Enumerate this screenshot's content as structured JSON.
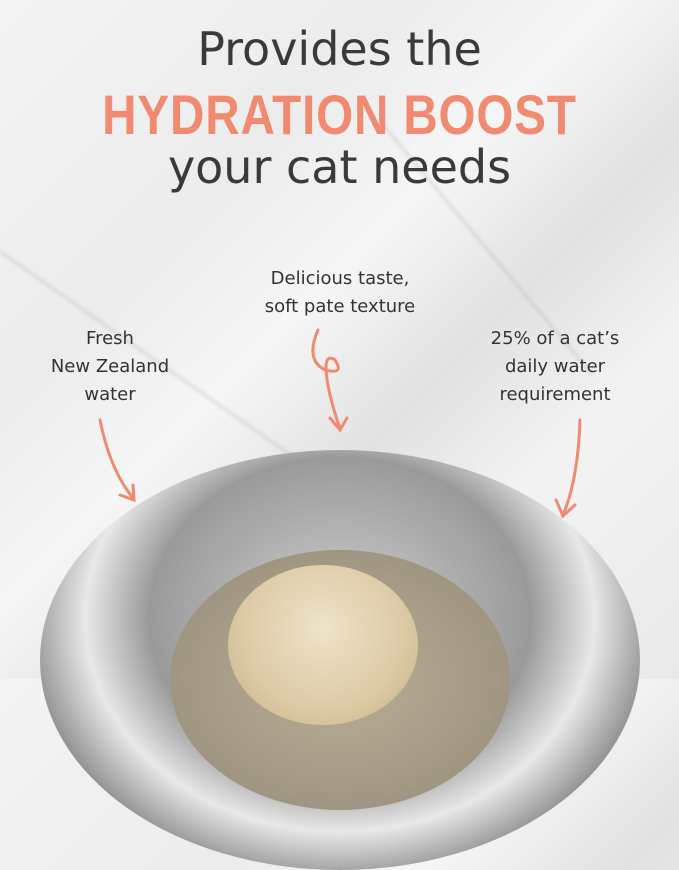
{
  "headline": {
    "line1": "Provides the",
    "line2": "HYDRATION BOOST",
    "line3": "your cat needs"
  },
  "callouts": {
    "left": [
      "Fresh",
      "New Zealand",
      "water"
    ],
    "center": [
      "Delicious taste,",
      "soft pate texture"
    ],
    "right": [
      "25% of a cat’s",
      "daily water",
      "requirement"
    ]
  },
  "colors": {
    "accent": "#f08a70",
    "text": "#3a3a3a"
  }
}
